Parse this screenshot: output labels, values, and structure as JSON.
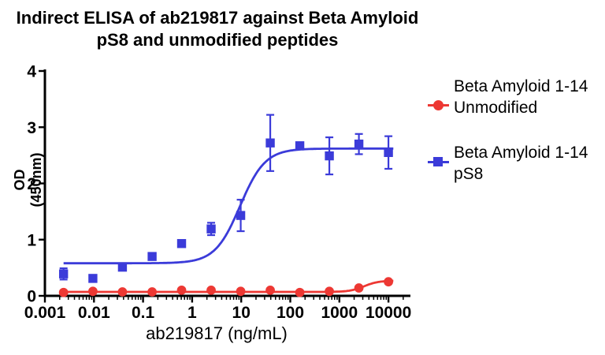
{
  "title": {
    "line1": "Indirect ELISA of ab219817 against Beta Amyloid",
    "line2": "pS8 and unmodified peptides"
  },
  "axes": {
    "x_label": "ab219817 (ng/mL)",
    "y_label": "OD (450nm)"
  },
  "legend": [
    {
      "marker": "circle",
      "color": "#ED3833",
      "line1": "Beta Amyloid 1-14",
      "line2": "Unmodified"
    },
    {
      "marker": "square",
      "color": "#3B3BD9",
      "line1": "Beta Amyloid 1-14",
      "line2": "pS8"
    }
  ],
  "chart_data": {
    "type": "scatter",
    "title": "Indirect ELISA of ab219817 against Beta Amyloid pS8 and unmodified peptides",
    "xlabel": "ab219817 (ng/mL)",
    "ylabel": "OD (450nm)",
    "x_scale": "log10",
    "xlim": [
      0.001,
      30000
    ],
    "ylim": [
      0,
      4
    ],
    "grid": false,
    "legend_position": "right",
    "x_ticks": [
      0.001,
      0.01,
      0.1,
      1,
      10,
      100,
      1000,
      10000
    ],
    "x_tick_labels": [
      "0.001",
      "0.01",
      "0.1",
      "1",
      "10",
      "100",
      "1000",
      "10000"
    ],
    "y_ticks": [
      0,
      1,
      2,
      3,
      4
    ],
    "y_tick_labels": [
      "0",
      "1",
      "2",
      "3",
      "4"
    ],
    "x_units": "ng/mL",
    "x": [
      0.0024,
      0.0095,
      0.038,
      0.153,
      0.61,
      2.44,
      9.77,
      39.06,
      156.25,
      625,
      2500,
      10000
    ],
    "series": [
      {
        "name": "Beta Amyloid 1-14 pS8",
        "marker": "square",
        "color": "#3B3BD9",
        "values": [
          0.39,
          0.31,
          0.51,
          0.7,
          0.93,
          1.19,
          1.43,
          2.72,
          2.67,
          2.49,
          2.7,
          2.55
        ],
        "errors": [
          0.1,
          0,
          0,
          0,
          0,
          0.11,
          0.28,
          0.5,
          0,
          0.33,
          0.18,
          0.29
        ],
        "fit_4pl": {
          "bottom": 0.58,
          "top": 2.62,
          "ec50": 9.5,
          "hill": 1.7
        }
      },
      {
        "name": "Beta Amyloid 1-14 Unmodified",
        "marker": "circle",
        "color": "#ED3833",
        "values": [
          0.06,
          0.08,
          0.07,
          0.07,
          0.1,
          0.1,
          0.08,
          0.1,
          0.06,
          0.08,
          0.14,
          0.25
        ],
        "errors": [
          0,
          0,
          0,
          0,
          0,
          0,
          0,
          0,
          0,
          0,
          0,
          0
        ],
        "fit_4pl": {
          "bottom": 0.07,
          "top": 0.27,
          "ec50": 3200,
          "hill": 3.0
        }
      }
    ]
  }
}
